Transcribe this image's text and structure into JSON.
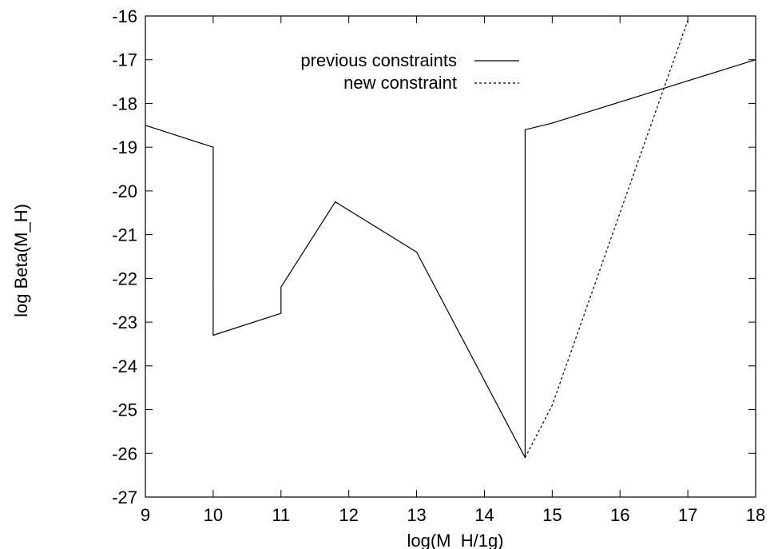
{
  "chart_data": {
    "type": "line",
    "title": "",
    "xlabel": "log(M_H/1g)",
    "ylabel": "log Beta(M_H)",
    "xlim": [
      9,
      18
    ],
    "ylim": [
      -27,
      -16
    ],
    "x_ticks": [
      "9",
      "10",
      "11",
      "12",
      "13",
      "14",
      "15",
      "16",
      "17",
      "18"
    ],
    "y_ticks": [
      "-16",
      "-17",
      "-18",
      "-19",
      "-20",
      "-21",
      "-22",
      "-23",
      "-24",
      "-25",
      "-26",
      "-27"
    ],
    "grid": false,
    "legend_position": "top-right",
    "series": [
      {
        "name": "previous constraints",
        "style": "solid",
        "color": "#000000",
        "points": [
          [
            9.0,
            -18.5
          ],
          [
            10.0,
            -19.0
          ],
          [
            10.0,
            -23.3
          ],
          [
            11.0,
            -22.8
          ],
          [
            11.0,
            -22.2
          ],
          [
            11.8,
            -20.25
          ],
          [
            13.0,
            -21.4
          ],
          [
            14.6,
            -26.1
          ],
          [
            14.6,
            -18.6
          ],
          [
            15.0,
            -18.45
          ],
          [
            18.0,
            -17.0
          ]
        ]
      },
      {
        "name": "new constraint",
        "style": "dotted",
        "color": "#000000",
        "points": [
          [
            14.6,
            -26.1
          ],
          [
            15.0,
            -24.9
          ],
          [
            17.0,
            -16.1
          ]
        ]
      }
    ]
  }
}
